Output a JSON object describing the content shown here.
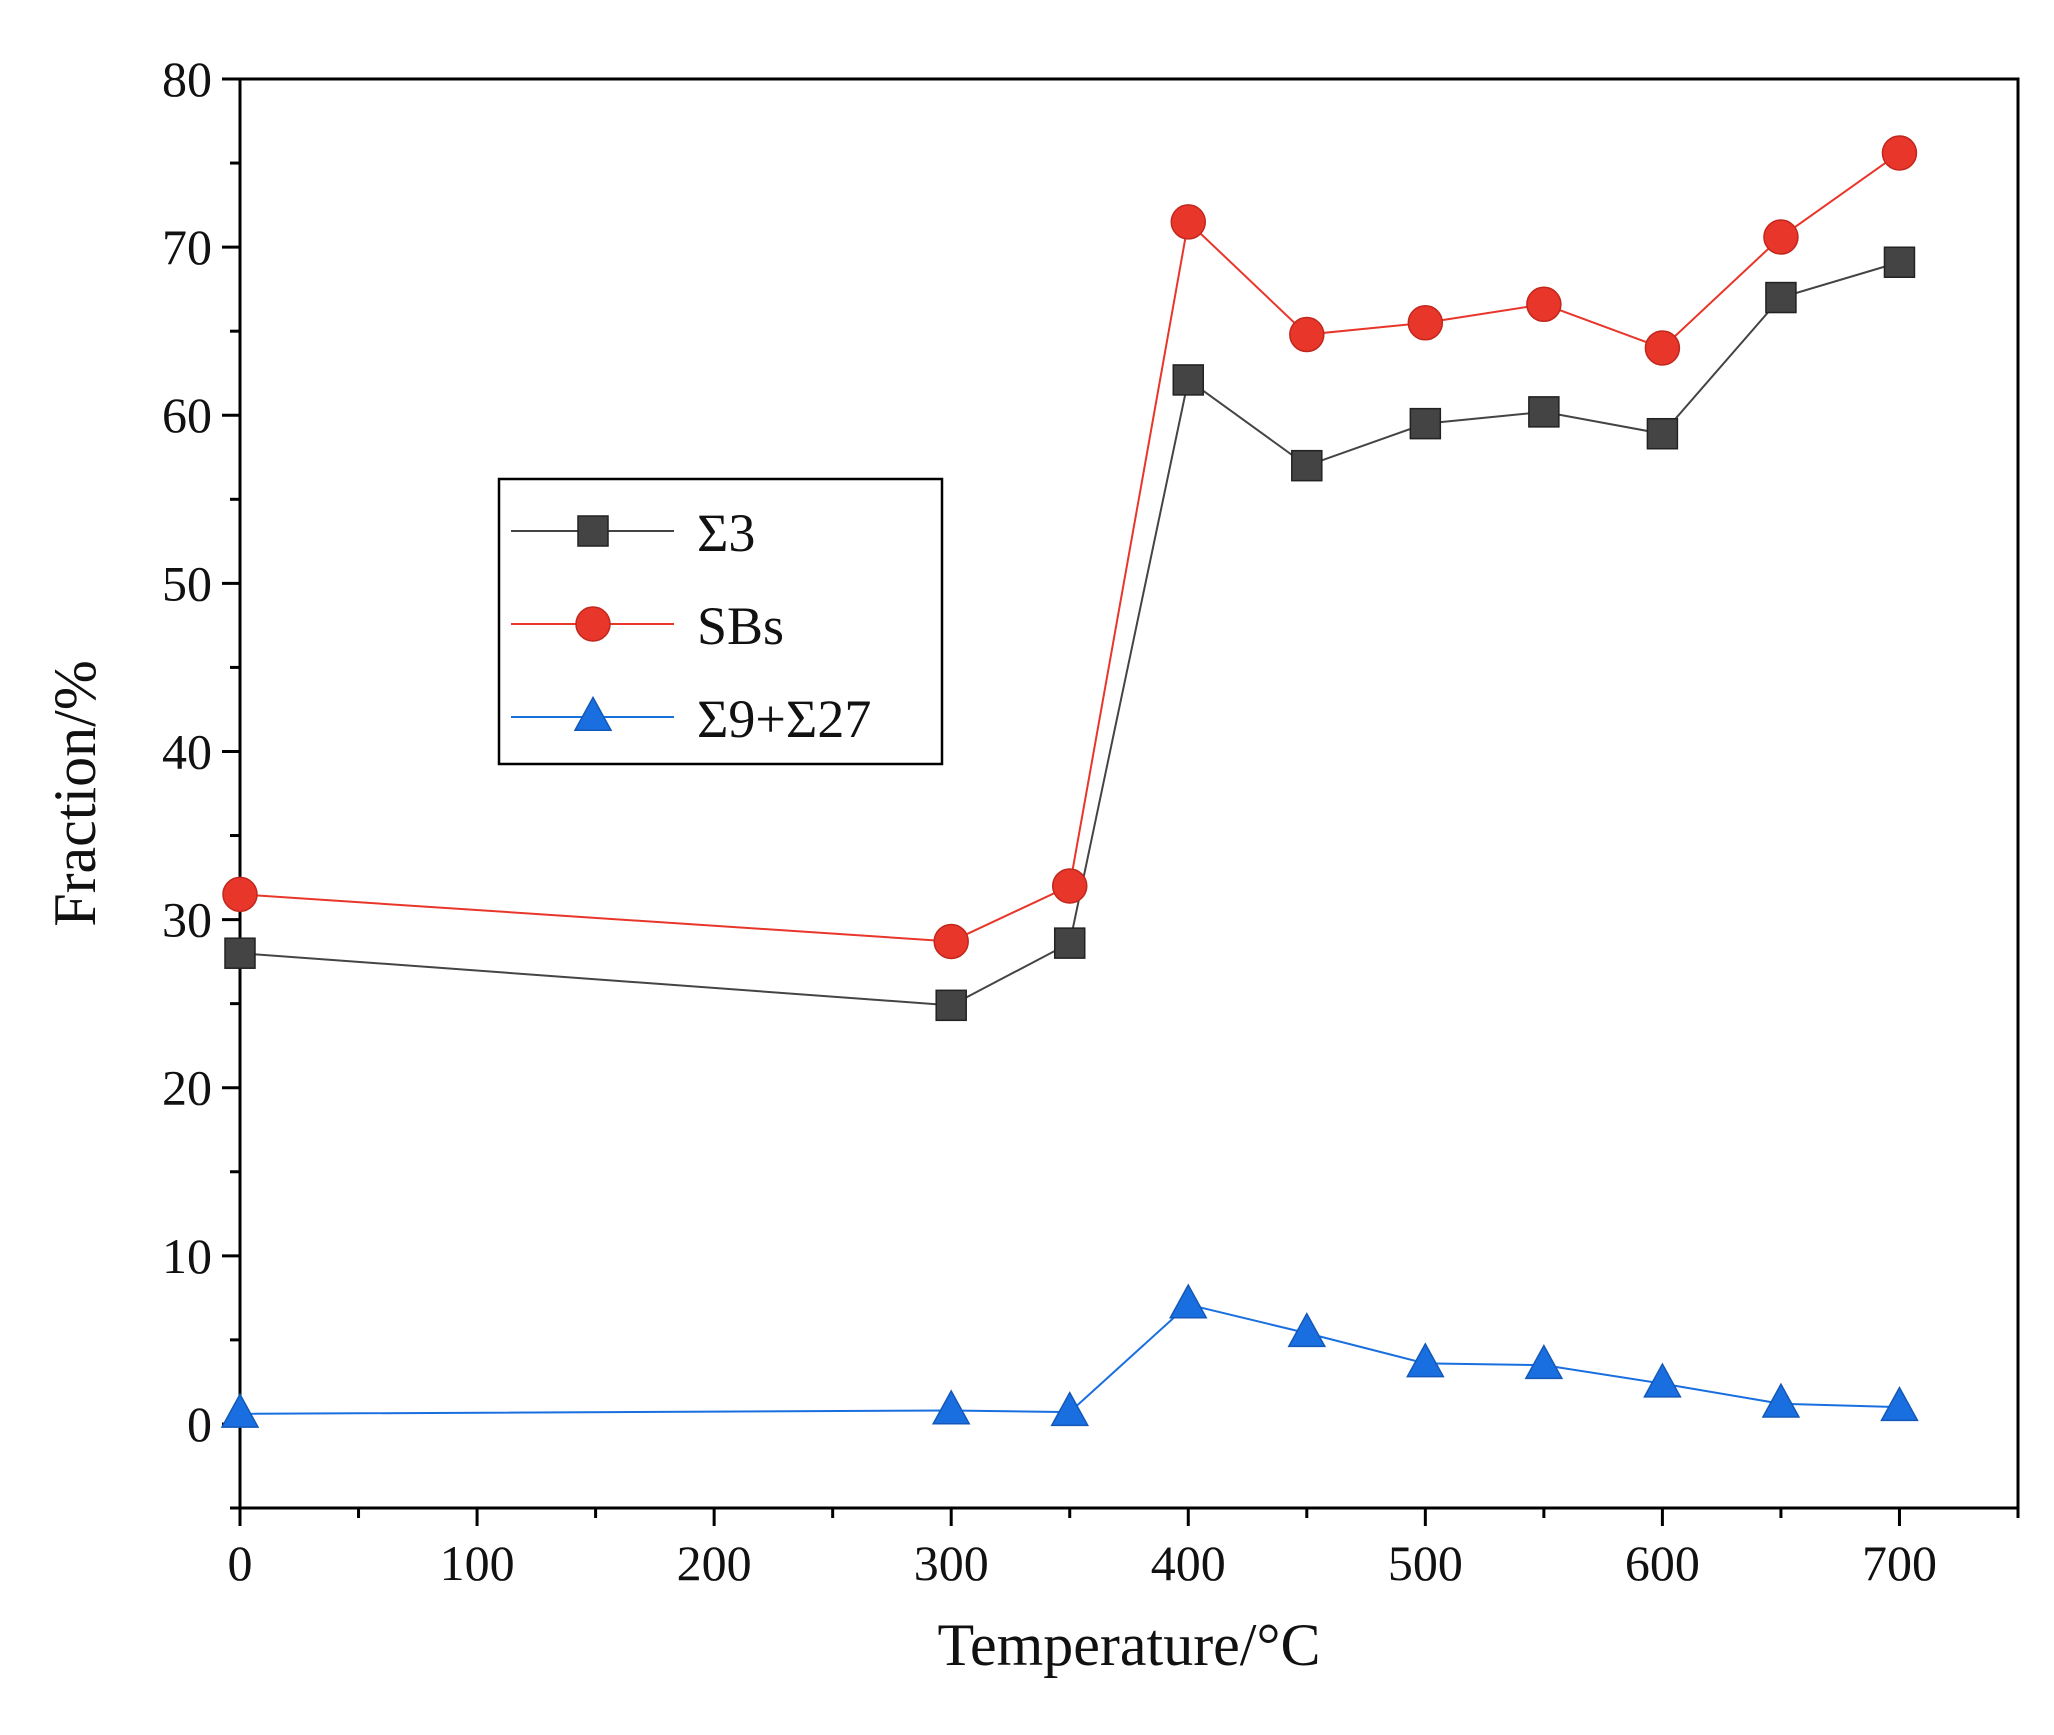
{
  "chart_data": {
    "type": "line",
    "title": "",
    "xlabel": "Temperature/°C",
    "ylabel": "Fraction/%",
    "xlim": [
      0,
      750
    ],
    "ylim": [
      -5,
      80
    ],
    "xticks": [
      0,
      100,
      200,
      300,
      400,
      500,
      600,
      700
    ],
    "yticks": [
      0,
      10,
      20,
      30,
      40,
      50,
      60,
      70,
      80
    ],
    "grid": false,
    "legend_position": "center-left",
    "series": [
      {
        "name": "Σ3",
        "color": "#444444",
        "marker": "square",
        "x": [
          0,
          300,
          350,
          400,
          450,
          500,
          550,
          600,
          650,
          700
        ],
        "values": [
          28.0,
          24.9,
          28.6,
          62.1,
          57.0,
          59.5,
          60.2,
          58.9,
          67.0,
          69.1
        ]
      },
      {
        "name": "SBs",
        "color": "#e8362a",
        "marker": "circle",
        "x": [
          0,
          300,
          350,
          400,
          450,
          500,
          550,
          600,
          650,
          700
        ],
        "values": [
          31.5,
          28.7,
          32.0,
          71.5,
          64.8,
          65.5,
          66.6,
          64.0,
          70.6,
          75.6
        ]
      },
      {
        "name": "Σ9+Σ27",
        "color": "#1a6fe0",
        "marker": "triangle",
        "x": [
          0,
          300,
          350,
          400,
          450,
          500,
          550,
          600,
          650,
          700
        ],
        "values": [
          0.6,
          0.8,
          0.7,
          7.1,
          5.4,
          3.6,
          3.5,
          2.4,
          1.2,
          1.0
        ]
      }
    ]
  }
}
